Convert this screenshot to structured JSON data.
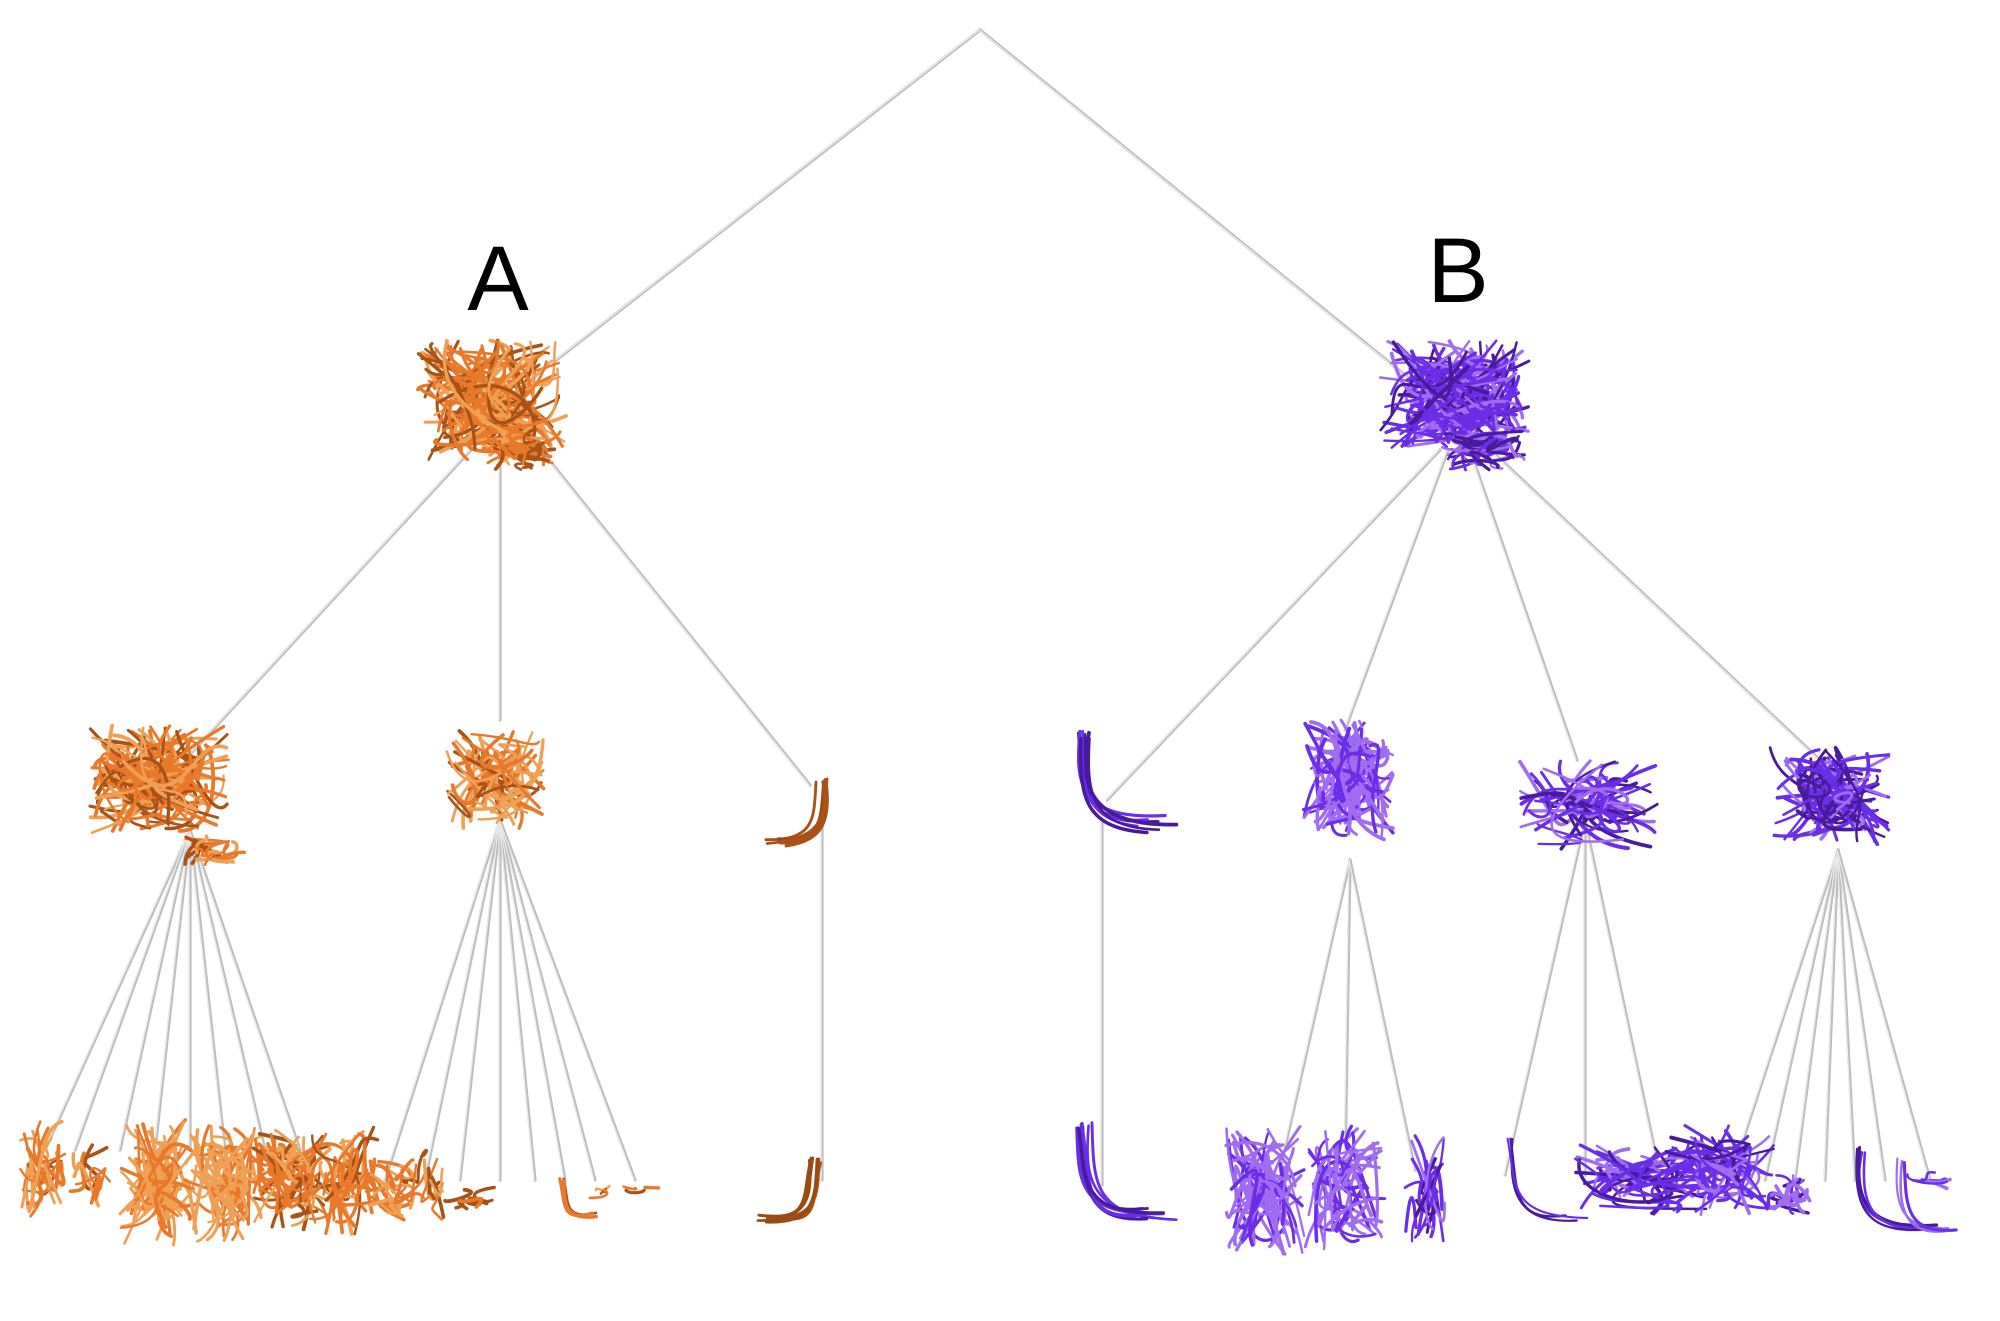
{
  "labels": {
    "a": "A",
    "b": "B"
  },
  "colors": {
    "orange": "#e8782a",
    "orange_light": "#f0a055",
    "orange_dark": "#a95216",
    "brown": "#9a4a12",
    "purple": "#6a2ee8",
    "purple_light": "#9f6cf2",
    "purple_dark": "#4a1a9e",
    "edge": "#bdbdbd"
  }
}
